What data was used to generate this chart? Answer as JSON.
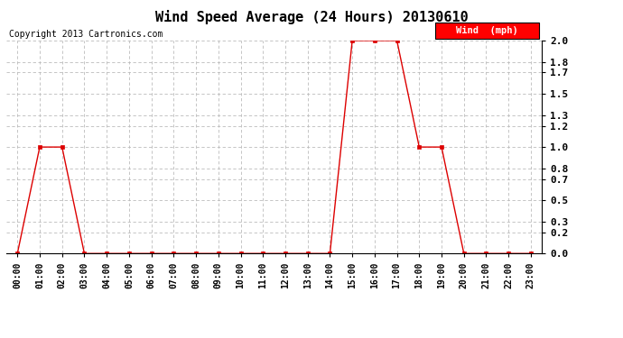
{
  "title": "Wind Speed Average (24 Hours) 20130610",
  "copyright_text": "Copyright 2013 Cartronics.com",
  "legend_label": "Wind  (mph)",
  "line_color": "#dd0000",
  "marker_color": "#dd0000",
  "background_color": "#ffffff",
  "grid_color": "#bbbbbb",
  "hours": [
    "00:00",
    "01:00",
    "02:00",
    "03:00",
    "04:00",
    "05:00",
    "06:00",
    "07:00",
    "08:00",
    "09:00",
    "10:00",
    "11:00",
    "12:00",
    "13:00",
    "14:00",
    "15:00",
    "16:00",
    "17:00",
    "18:00",
    "19:00",
    "20:00",
    "21:00",
    "22:00",
    "23:00"
  ],
  "values": [
    0.0,
    1.0,
    1.0,
    0.0,
    0.0,
    0.0,
    0.0,
    0.0,
    0.0,
    0.0,
    0.0,
    0.0,
    0.0,
    0.0,
    0.0,
    2.0,
    2.0,
    2.0,
    1.0,
    1.0,
    0.0,
    0.0,
    0.0,
    0.0
  ],
  "ylim": [
    0.0,
    2.0
  ],
  "yticks": [
    0.0,
    0.2,
    0.3,
    0.5,
    0.7,
    0.8,
    1.0,
    1.2,
    1.3,
    1.5,
    1.7,
    1.8,
    2.0
  ],
  "title_fontsize": 11,
  "copyright_fontsize": 7,
  "ytick_fontsize": 8,
  "xtick_fontsize": 7
}
